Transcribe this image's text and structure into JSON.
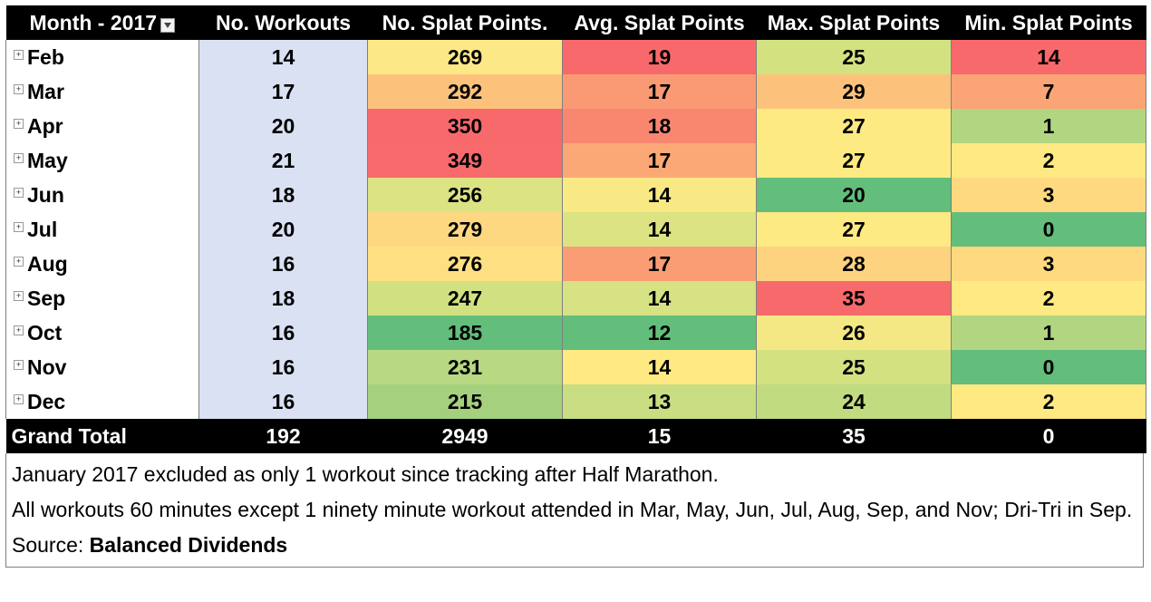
{
  "table": {
    "headers": {
      "month": "Month - 2017",
      "workouts": "No. Workouts",
      "splat": "No. Splat Points.",
      "avg": "Avg. Splat Points",
      "max": "Max. Splat Points",
      "min": "Min. Splat Points"
    },
    "expander_glyph": "+",
    "rows": [
      {
        "month": "Feb",
        "workouts": "14",
        "splat": "269",
        "avg": "19",
        "max": "25",
        "min": "14",
        "colors": {
          "splat": "#fde887",
          "avg": "#f8696b",
          "max": "#d4e181",
          "min": "#f8696b"
        }
      },
      {
        "month": "Mar",
        "workouts": "17",
        "splat": "292",
        "avg": "17",
        "max": "29",
        "min": "7",
        "colors": {
          "splat": "#fcc27c",
          "avg": "#fa9a74",
          "max": "#fcc27c",
          "min": "#fba576"
        }
      },
      {
        "month": "Apr",
        "workouts": "20",
        "splat": "350",
        "avg": "18",
        "max": "27",
        "min": "1",
        "colors": {
          "splat": "#f8696b",
          "avg": "#f98770",
          "max": "#feea83",
          "min": "#b1d580"
        }
      },
      {
        "month": "May",
        "workouts": "21",
        "splat": "349",
        "avg": "17",
        "max": "27",
        "min": "2",
        "colors": {
          "splat": "#f86a6b",
          "avg": "#fba876",
          "max": "#feea83",
          "min": "#fee983"
        }
      },
      {
        "month": "Jun",
        "workouts": "18",
        "splat": "256",
        "avg": "14",
        "max": "20",
        "min": "3",
        "colors": {
          "splat": "#dce383",
          "avg": "#f8e984",
          "max": "#63be7b",
          "min": "#fed980"
        }
      },
      {
        "month": "Jul",
        "workouts": "20",
        "splat": "279",
        "avg": "14",
        "max": "27",
        "min": "0",
        "colors": {
          "splat": "#fed880",
          "avg": "#dce383",
          "max": "#feea83",
          "min": "#63be7b"
        }
      },
      {
        "month": "Aug",
        "workouts": "16",
        "splat": "276",
        "avg": "17",
        "max": "28",
        "min": "3",
        "colors": {
          "splat": "#fee082",
          "avg": "#fa9d75",
          "max": "#fdd37f",
          "min": "#fed980"
        }
      },
      {
        "month": "Sep",
        "workouts": "18",
        "splat": "247",
        "avg": "14",
        "max": "35",
        "min": "2",
        "colors": {
          "splat": "#d1e182",
          "avg": "#d6e283",
          "max": "#f8696b",
          "min": "#fee983"
        }
      },
      {
        "month": "Oct",
        "workouts": "16",
        "splat": "185",
        "avg": "12",
        "max": "26",
        "min": "1",
        "colors": {
          "splat": "#63be7b",
          "avg": "#63be7b",
          "max": "#f3e884",
          "min": "#b1d580"
        }
      },
      {
        "month": "Nov",
        "workouts": "16",
        "splat": "231",
        "avg": "14",
        "max": "25",
        "min": "0",
        "colors": {
          "splat": "#b8d881",
          "avg": "#fee983",
          "max": "#d4e181",
          "min": "#63be7b"
        }
      },
      {
        "month": "Dec",
        "workouts": "16",
        "splat": "215",
        "avg": "13",
        "max": "24",
        "min": "2",
        "colors": {
          "splat": "#a5d17e",
          "avg": "#c9de82",
          "max": "#c1db81",
          "min": "#fee983"
        }
      }
    ],
    "grand_total": {
      "label": "Grand Total",
      "workouts": "192",
      "splat": "2949",
      "avg": "15",
      "max": "35",
      "min": "0"
    }
  },
  "notes": {
    "line1": "January 2017 excluded as only 1 workout since tracking after Half Marathon.",
    "line2": "All workouts 60 minutes except 1 ninety minute workout attended in Mar, May, Jun, Jul, Aug, Sep, and Nov; Dri-Tri in Sep.",
    "source_prefix": "Source: ",
    "source_name": "Balanced Dividends"
  }
}
